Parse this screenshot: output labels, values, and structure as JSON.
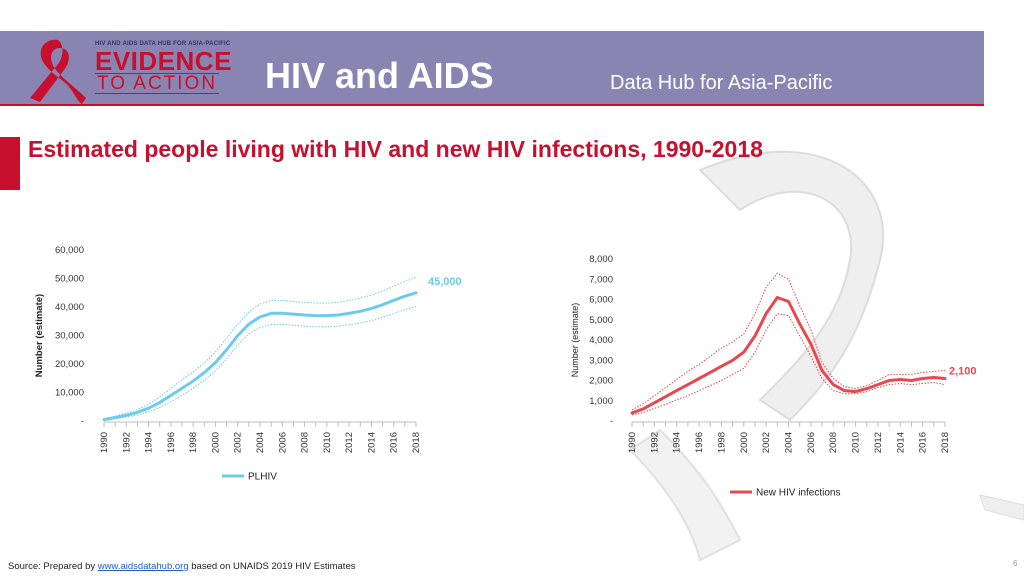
{
  "header": {
    "logo_tagline": "HIV AND AIDS DATA HUB FOR ASIA-PACIFIC",
    "logo_main": "EVIDENCE",
    "logo_sub": "TO ACTION",
    "title": "HIV and AIDS",
    "subtitle": "Data Hub for Asia-Pacific"
  },
  "slide_title": "Estimated people living with HIV and new HIV infections, 1990-2018",
  "source": {
    "prefix": "Source: Prepared by ",
    "link": "www.aidsdatahub.org",
    "suffix": "  based on UNAIDS 2019 HIV Estimates"
  },
  "page_number": "6",
  "colors": {
    "band": "#8a84b2",
    "accent": "#c8102e",
    "plhiv": "#6ccbea",
    "new_infections": "#e8474f"
  },
  "chart_data": [
    {
      "type": "line",
      "ylabel": "Number (estimate)",
      "ylim": [
        0,
        60000
      ],
      "y_ticks": [
        0,
        10000,
        20000,
        30000,
        40000,
        50000,
        60000
      ],
      "y_tick_labels": [
        "-",
        "10,000",
        "20,000",
        "30,000",
        "40,000",
        "50,000",
        "60,000"
      ],
      "x_tick_labels": [
        "1990",
        "1992",
        "1994",
        "1996",
        "1998",
        "2000",
        "2002",
        "2004",
        "2006",
        "2008",
        "2010",
        "2012",
        "2014",
        "2016",
        "2018"
      ],
      "x": [
        1990,
        1991,
        1992,
        1993,
        1994,
        1995,
        1996,
        1997,
        1998,
        1999,
        2000,
        2001,
        2002,
        2003,
        2004,
        2005,
        2006,
        2007,
        2008,
        2009,
        2010,
        2011,
        2012,
        2013,
        2014,
        2015,
        2016,
        2017,
        2018
      ],
      "series": [
        {
          "name": "PLHIV",
          "values": [
            500,
            1200,
            2000,
            3000,
            4500,
            6500,
            9000,
            11500,
            14000,
            17000,
            20500,
            25000,
            30000,
            34000,
            36500,
            37800,
            37800,
            37500,
            37200,
            37000,
            37000,
            37200,
            37800,
            38500,
            39500,
            40800,
            42300,
            43800,
            45000
          ],
          "lower": [
            300,
            800,
            1400,
            2100,
            3200,
            4800,
            6800,
            9000,
            11500,
            14300,
            17600,
            21800,
            26800,
            30600,
            32800,
            33900,
            33900,
            33600,
            33300,
            33100,
            33100,
            33300,
            33800,
            34400,
            35300,
            36400,
            37700,
            39100,
            40200
          ],
          "upper": [
            800,
            1700,
            2700,
            4000,
            5900,
            8400,
            11500,
            14500,
            17200,
            20400,
            24200,
            29000,
            34000,
            38300,
            41000,
            42300,
            42300,
            41900,
            41600,
            41400,
            41400,
            41600,
            42300,
            43100,
            44200,
            45600,
            47300,
            49000,
            50400
          ],
          "end_label": "45,000"
        }
      ]
    },
    {
      "type": "line",
      "ylabel": "Number (estimate)",
      "ylim": [
        0,
        8000
      ],
      "y_ticks": [
        0,
        1000,
        2000,
        3000,
        4000,
        5000,
        6000,
        7000,
        8000
      ],
      "y_tick_labels": [
        "-",
        "1,000",
        "2,000",
        "3,000",
        "4,000",
        "5,000",
        "6,000",
        "7,000",
        "8,000"
      ],
      "x_tick_labels": [
        "1990",
        "1992",
        "1994",
        "1996",
        "1998",
        "2000",
        "2002",
        "2004",
        "2006",
        "2008",
        "2010",
        "2012",
        "2014",
        "2016",
        "2018"
      ],
      "x": [
        1990,
        1991,
        1992,
        1993,
        1994,
        1995,
        1996,
        1997,
        1998,
        1999,
        2000,
        2001,
        2002,
        2003,
        2004,
        2005,
        2006,
        2007,
        2008,
        2009,
        2010,
        2011,
        2012,
        2013,
        2014,
        2015,
        2016,
        2017,
        2018
      ],
      "series": [
        {
          "name": "New HIV infections",
          "values": [
            400,
            600,
            900,
            1200,
            1500,
            1800,
            2100,
            2400,
            2700,
            3000,
            3400,
            4200,
            5300,
            6100,
            5900,
            4800,
            3800,
            2500,
            1800,
            1500,
            1450,
            1600,
            1800,
            2000,
            2050,
            2000,
            2100,
            2150,
            2100
          ],
          "lower": [
            300,
            420,
            620,
            820,
            1050,
            1250,
            1500,
            1750,
            2000,
            2300,
            2600,
            3400,
            4500,
            5300,
            5200,
            4200,
            3200,
            2100,
            1500,
            1350,
            1350,
            1450,
            1650,
            1800,
            1850,
            1800,
            1850,
            1900,
            1800
          ],
          "upper": [
            550,
            850,
            1250,
            1650,
            2050,
            2450,
            2800,
            3200,
            3600,
            3900,
            4300,
            5300,
            6600,
            7300,
            7000,
            5700,
            4500,
            2900,
            2100,
            1700,
            1600,
            1750,
            2000,
            2300,
            2300,
            2300,
            2400,
            2450,
            2500
          ],
          "end_label": "2,100"
        }
      ]
    }
  ]
}
